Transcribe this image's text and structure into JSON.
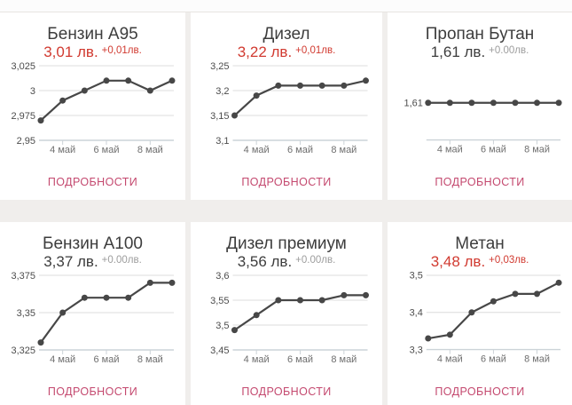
{
  "labels": {
    "details": "ПОДРОБНОСТИ"
  },
  "x_axis": {
    "tick_labels": [
      "4 май",
      "6 май",
      "8 май"
    ],
    "tick_point_indices": [
      1,
      3,
      5
    ]
  },
  "colors": {
    "accent_red": "#d13a30",
    "price_dark": "#3d3d3d",
    "change_gray": "#9d9d9d",
    "details_pink": "#c4496f",
    "line": "#474747",
    "grid": "#dcdcdc",
    "axis": "#ccd3d8",
    "y_label": "#4c4c4c",
    "x_label": "#6e6e6e",
    "card_bg": "#ffffff",
    "page_bg": "#f0eeec"
  },
  "chart_data": [
    {
      "type": "line",
      "title": "Бензин А95",
      "price": "3,01 лв.",
      "change": "+0,01лв.",
      "price_highlighted": true,
      "values": [
        2.97,
        2.99,
        3.0,
        3.01,
        3.01,
        3.0,
        3.01
      ],
      "y_ticks": [
        {
          "label": "3,025",
          "value": 3.025
        },
        {
          "label": "3",
          "value": 3.0
        },
        {
          "label": "2,975",
          "value": 2.975
        },
        {
          "label": "2,95",
          "value": 2.95
        }
      ],
      "y_top": 3.025,
      "y_bottom": 2.95,
      "grid": true,
      "legend": "none"
    },
    {
      "type": "line",
      "title": "Дизел",
      "price": "3,22 лв.",
      "change": "+0,01лв.",
      "price_highlighted": true,
      "values": [
        3.15,
        3.19,
        3.21,
        3.21,
        3.21,
        3.21,
        3.22
      ],
      "y_ticks": [
        {
          "label": "3,25",
          "value": 3.25
        },
        {
          "label": "3,2",
          "value": 3.2
        },
        {
          "label": "3,15",
          "value": 3.15
        },
        {
          "label": "3,1",
          "value": 3.1
        }
      ],
      "y_top": 3.25,
      "y_bottom": 3.1,
      "grid": true,
      "legend": "none"
    },
    {
      "type": "line",
      "title": "Пропан Бутан",
      "price": "1,61 лв.",
      "change": "+0.00лв.",
      "price_highlighted": false,
      "values": [
        1.61,
        1.61,
        1.61,
        1.61,
        1.61,
        1.61,
        1.61
      ],
      "y_ticks": [
        {
          "label": "1,61",
          "value": 1.61
        }
      ],
      "y_top": 1.66,
      "y_bottom": 1.56,
      "grid": true,
      "legend": "none"
    },
    {
      "type": "line",
      "title": "Бензин А100",
      "price": "3,37 лв.",
      "change": "+0.00лв.",
      "price_highlighted": false,
      "values": [
        3.33,
        3.35,
        3.36,
        3.36,
        3.36,
        3.37,
        3.37
      ],
      "y_ticks": [
        {
          "label": "3,375",
          "value": 3.375
        },
        {
          "label": "3,35",
          "value": 3.35
        },
        {
          "label": "3,325",
          "value": 3.325
        }
      ],
      "y_top": 3.375,
      "y_bottom": 3.325,
      "grid": true,
      "legend": "none"
    },
    {
      "type": "line",
      "title": "Дизел премиум",
      "price": "3,56 лв.",
      "change": "+0.00лв.",
      "price_highlighted": false,
      "values": [
        3.49,
        3.52,
        3.55,
        3.55,
        3.55,
        3.56,
        3.56
      ],
      "y_ticks": [
        {
          "label": "3,6",
          "value": 3.6
        },
        {
          "label": "3,55",
          "value": 3.55
        },
        {
          "label": "3,5",
          "value": 3.5
        },
        {
          "label": "3,45",
          "value": 3.45
        }
      ],
      "y_top": 3.6,
      "y_bottom": 3.45,
      "grid": true,
      "legend": "none"
    },
    {
      "type": "line",
      "title": "Метан",
      "price": "3,48 лв.",
      "change": "+0,03лв.",
      "price_highlighted": true,
      "values": [
        3.33,
        3.34,
        3.4,
        3.43,
        3.45,
        3.45,
        3.48
      ],
      "y_ticks": [
        {
          "label": "3,5",
          "value": 3.5
        },
        {
          "label": "3,4",
          "value": 3.4
        },
        {
          "label": "3,3",
          "value": 3.3
        }
      ],
      "y_top": 3.5,
      "y_bottom": 3.3,
      "grid": true,
      "legend": "none"
    }
  ]
}
